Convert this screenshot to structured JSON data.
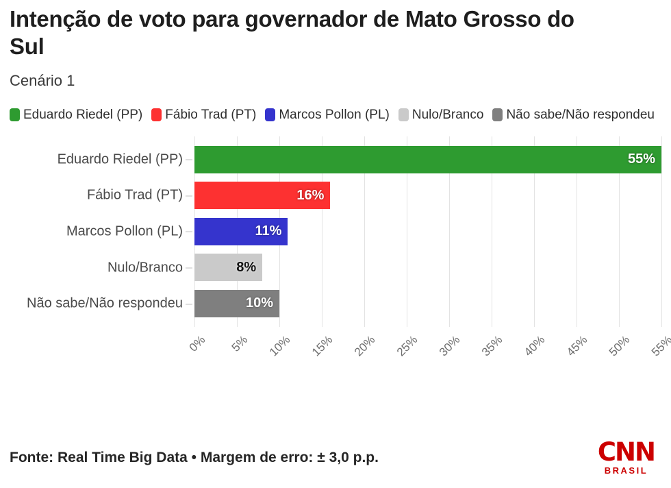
{
  "header": {
    "title": "Intenção de voto para governador de Mato Grosso do Sul",
    "subtitle": "Cenário 1"
  },
  "legend": {
    "items": [
      {
        "label": "Eduardo Riedel (PP)",
        "color": "#2e9b30"
      },
      {
        "label": "Fábio Trad (PT)",
        "color": "#fd3131"
      },
      {
        "label": "Marcos Pollon (PL)",
        "color": "#3534cd"
      },
      {
        "label": "Nulo/Branco",
        "color": "#cacaca"
      },
      {
        "label": "Não sabe/Não respondeu",
        "color": "#7f7f7f"
      }
    ]
  },
  "chart_data": {
    "type": "bar",
    "orientation": "horizontal",
    "title": "Intenção de voto para governador de Mato Grosso do Sul",
    "subtitle": "Cenário 1",
    "categories": [
      "Eduardo Riedel (PP)",
      "Fábio Trad (PT)",
      "Marcos Pollon (PL)",
      "Nulo/Branco",
      "Não sabe/Não respondeu"
    ],
    "values": [
      55,
      16,
      11,
      8,
      10
    ],
    "value_labels": [
      "55%",
      "16%",
      "11%",
      "8%",
      "10%"
    ],
    "bar_colors": [
      "#2e9b30",
      "#fd3131",
      "#3534cd",
      "#cacaca",
      "#7f7f7f"
    ],
    "value_label_colors": [
      "#ffffff",
      "#ffffff",
      "#ffffff",
      "#111111",
      "#ffffff"
    ],
    "xlim": [
      0,
      55
    ],
    "x_ticks": [
      "0%",
      "5%",
      "10%",
      "15%",
      "20%",
      "25%",
      "30%",
      "35%",
      "40%",
      "45%",
      "50%",
      "55%"
    ],
    "x_tick_values": [
      0,
      5,
      10,
      15,
      20,
      25,
      30,
      35,
      40,
      45,
      50,
      55
    ],
    "grid": true,
    "legend_position": "top",
    "value_labels_inside_bars": true
  },
  "footer": {
    "source": "Fonte: Real Time Big Data • Margem de erro: ± 3,0 p.p.",
    "logo": {
      "text": "CNN",
      "subtext": "BRASIL",
      "color": "#cc0000"
    }
  }
}
